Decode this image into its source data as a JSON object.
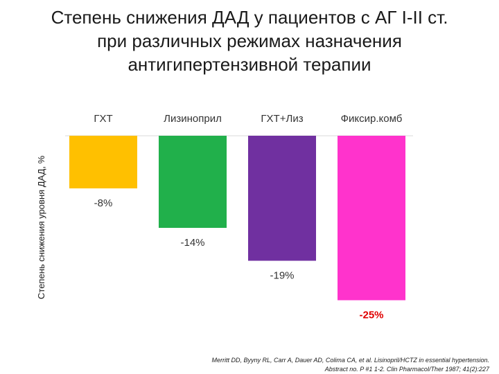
{
  "chart_data": {
    "type": "bar",
    "title": [
      "Степень снижения ДАД у пациентов с АГ I-II ст.",
      "при различных режимах назначения",
      "антигипертензивной терапии"
    ],
    "ylabel": "Степень снижения уровня ДАД, %",
    "categories": [
      "ГХТ",
      "Лизиноприл",
      "ГХТ+Лиз",
      "Фиксир.комб"
    ],
    "values": [
      -8,
      -14,
      -19,
      -25
    ],
    "value_labels": [
      "-8%",
      "-14%",
      "-19%",
      "-25%"
    ],
    "colors": [
      "#FFC000",
      "#21B04B",
      "#7030A0",
      "#FF33CC"
    ],
    "label_colors": [
      "#333333",
      "#333333",
      "#333333",
      "#E00000"
    ],
    "category_position": "top",
    "ylim": [
      -26,
      0
    ],
    "grid": false,
    "legend": "none"
  },
  "footnote": {
    "line1": "Merritt DD, Byyny RL, Carr A, Dauer AD, Colima CA, et al. Lisinopril/HCTZ in essential hypertension.",
    "line2": "Abstract no. P #1 1-2. Clin   Pharmacol/Ther 1987; 41(2):227"
  }
}
